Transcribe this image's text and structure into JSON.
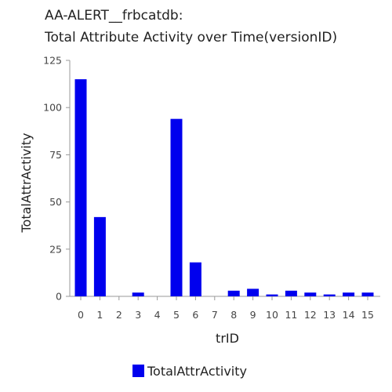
{
  "chart_data": {
    "type": "bar",
    "title_line1": "AA-ALERT__frbcatdb:",
    "title_line2": "Total Attribute Activity over Time(versionID)",
    "xlabel": "trID",
    "ylabel": "TotalAttrActivity",
    "categories": [
      "0",
      "1",
      "2",
      "3",
      "4",
      "5",
      "6",
      "7",
      "8",
      "9",
      "10",
      "11",
      "12",
      "13",
      "14",
      "15"
    ],
    "series": [
      {
        "name": "TotalAttrActivity",
        "color": "#0000ee",
        "values": [
          115,
          42,
          0,
          2,
          0,
          94,
          18,
          0,
          3,
          4,
          1,
          3,
          2,
          1,
          2,
          2
        ]
      }
    ],
    "ylim": [
      0,
      125
    ],
    "yticks": [
      0,
      25,
      50,
      75,
      100,
      125
    ],
    "grid": false,
    "legend_position": "bottom"
  }
}
